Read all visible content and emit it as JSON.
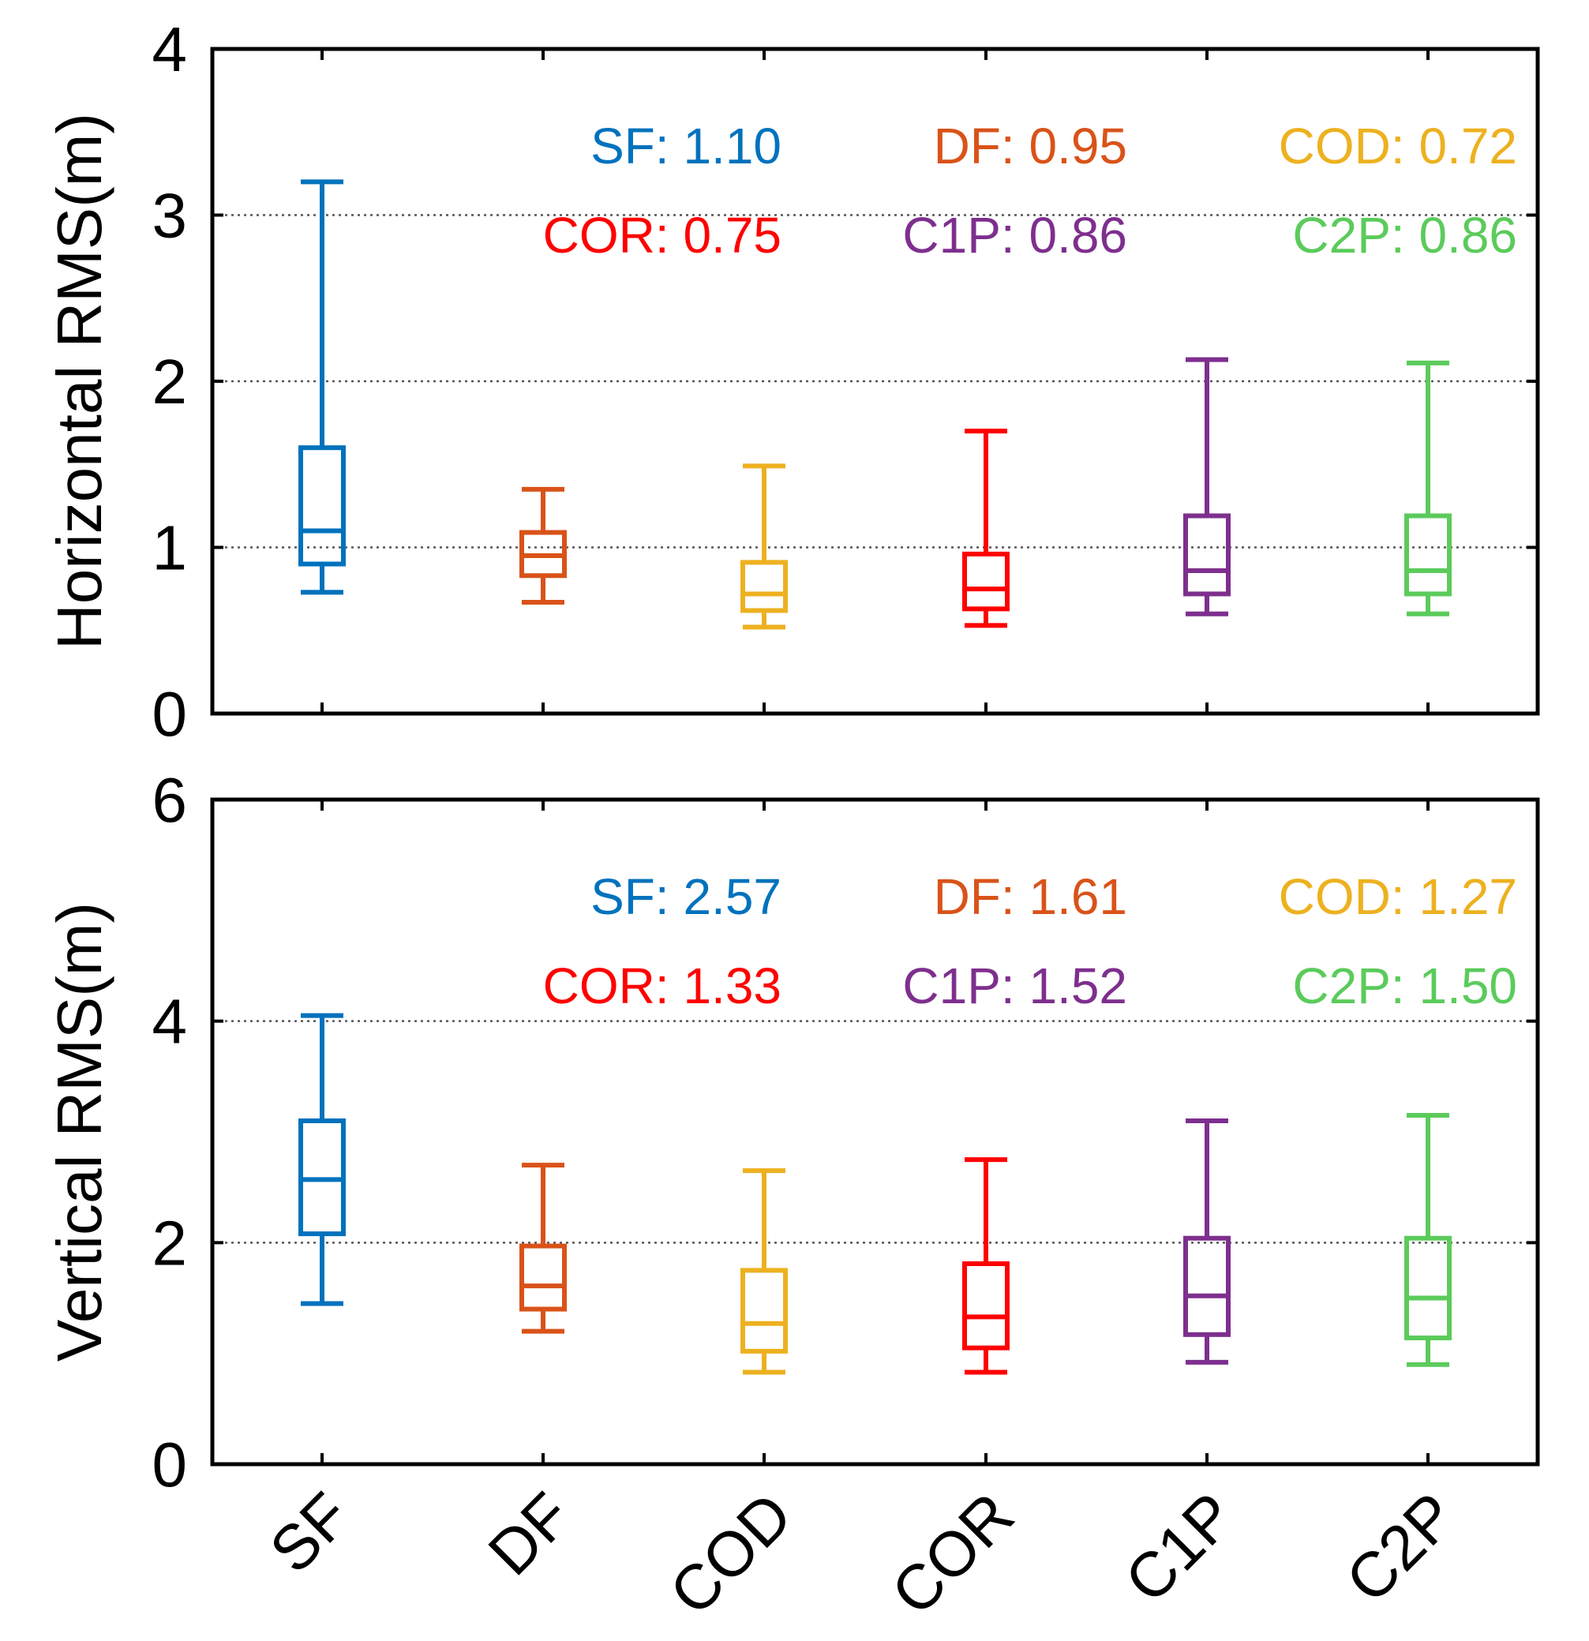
{
  "chart_data": [
    {
      "type": "box",
      "ylabel": "Horizontal RMS(m)",
      "ylim": [
        0,
        4
      ],
      "yticks": [
        0,
        1,
        2,
        3,
        4
      ],
      "gridlines": [
        1,
        2,
        3
      ],
      "categories": [
        "SF",
        "DF",
        "COD",
        "COR",
        "C1P",
        "C2P"
      ],
      "boxes": [
        {
          "name": "SF",
          "color": "#0072BD",
          "whisker_low": 0.73,
          "q1": 0.9,
          "median": 1.1,
          "q3": 1.6,
          "whisker_high": 3.2
        },
        {
          "name": "DF",
          "color": "#D95319",
          "whisker_low": 0.67,
          "q1": 0.83,
          "median": 0.95,
          "q3": 1.09,
          "whisker_high": 1.35
        },
        {
          "name": "COD",
          "color": "#EDB120",
          "whisker_low": 0.52,
          "q1": 0.62,
          "median": 0.72,
          "q3": 0.91,
          "whisker_high": 1.49
        },
        {
          "name": "COR",
          "color": "#FF0000",
          "whisker_low": 0.53,
          "q1": 0.63,
          "median": 0.75,
          "q3": 0.96,
          "whisker_high": 1.7
        },
        {
          "name": "C1P",
          "color": "#7E2F8E",
          "whisker_low": 0.6,
          "q1": 0.72,
          "median": 0.86,
          "q3": 1.19,
          "whisker_high": 2.13
        },
        {
          "name": "C2P",
          "color": "#5BCB5B",
          "whisker_low": 0.6,
          "q1": 0.72,
          "median": 0.86,
          "q3": 1.19,
          "whisker_high": 2.11
        }
      ],
      "annotations": [
        {
          "label": "SF: 1.10",
          "color": "#0072BD"
        },
        {
          "label": "DF: 0.95",
          "color": "#D95319"
        },
        {
          "label": "COD: 0.72",
          "color": "#EDB120"
        },
        {
          "label": "COR: 0.75",
          "color": "#FF0000"
        },
        {
          "label": "C1P: 0.86",
          "color": "#7E2F8E"
        },
        {
          "label": "C2P: 0.86",
          "color": "#5BCB5B"
        }
      ]
    },
    {
      "type": "box",
      "ylabel": "Vertical RMS(m)",
      "ylim": [
        0,
        6
      ],
      "yticks": [
        0,
        2,
        4,
        6
      ],
      "gridlines": [
        2,
        4
      ],
      "categories": [
        "SF",
        "DF",
        "COD",
        "COR",
        "C1P",
        "C2P"
      ],
      "boxes": [
        {
          "name": "SF",
          "color": "#0072BD",
          "whisker_low": 1.45,
          "q1": 2.08,
          "median": 2.57,
          "q3": 3.1,
          "whisker_high": 4.05
        },
        {
          "name": "DF",
          "color": "#D95319",
          "whisker_low": 1.2,
          "q1": 1.4,
          "median": 1.61,
          "q3": 1.97,
          "whisker_high": 2.7
        },
        {
          "name": "COD",
          "color": "#EDB120",
          "whisker_low": 0.83,
          "q1": 1.02,
          "median": 1.27,
          "q3": 1.75,
          "whisker_high": 2.65
        },
        {
          "name": "COR",
          "color": "#FF0000",
          "whisker_low": 0.83,
          "q1": 1.05,
          "median": 1.33,
          "q3": 1.81,
          "whisker_high": 2.75
        },
        {
          "name": "C1P",
          "color": "#7E2F8E",
          "whisker_low": 0.92,
          "q1": 1.17,
          "median": 1.52,
          "q3": 2.04,
          "whisker_high": 3.1
        },
        {
          "name": "C2P",
          "color": "#5BCB5B",
          "whisker_low": 0.9,
          "q1": 1.14,
          "median": 1.5,
          "q3": 2.04,
          "whisker_high": 3.15
        }
      ],
      "annotations": [
        {
          "label": "SF: 2.57",
          "color": "#0072BD"
        },
        {
          "label": "DF: 1.61",
          "color": "#D95319"
        },
        {
          "label": "COD: 1.27",
          "color": "#EDB120"
        },
        {
          "label": "COR: 1.33",
          "color": "#FF0000"
        },
        {
          "label": "C1P: 1.52",
          "color": "#7E2F8E"
        },
        {
          "label": "C2P: 1.50",
          "color": "#5BCB5B"
        }
      ]
    }
  ]
}
